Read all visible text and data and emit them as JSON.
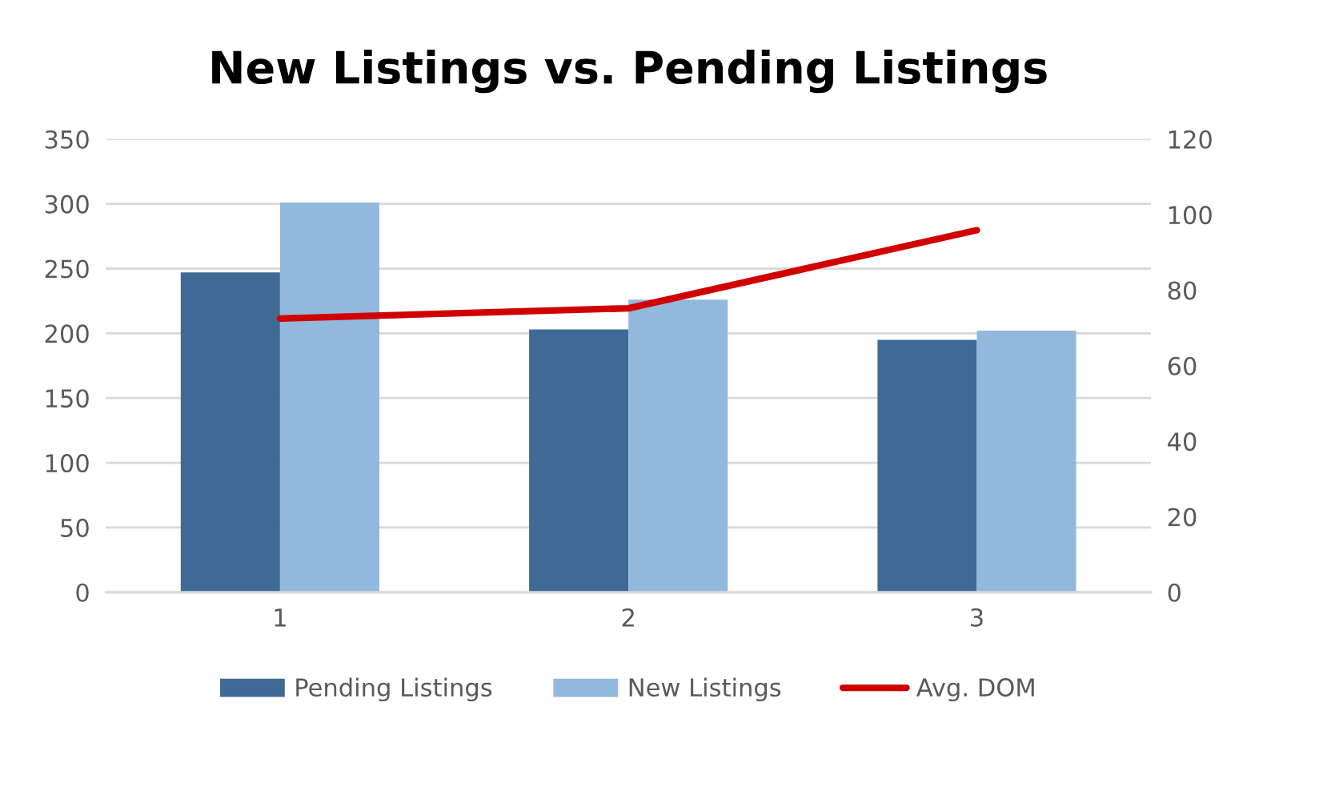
{
  "chart_data": {
    "type": "bar",
    "title": "New Listings vs. Pending Listings",
    "categories": [
      "1",
      "2",
      "3"
    ],
    "series": [
      {
        "name": "Pending Listings",
        "color": "#3e6a95",
        "values": [
          247,
          203,
          195
        ]
      },
      {
        "name": "New Listings",
        "color": "#92b8db",
        "values": [
          301,
          226,
          202
        ]
      },
      {
        "name": "Avg. DOM",
        "type": "line",
        "axis": "y2",
        "color": "#d00000",
        "values": [
          72.5,
          75.2,
          95.9
        ]
      }
    ],
    "ylim": [
      0,
      350
    ],
    "yticks": [
      0,
      50,
      100,
      150,
      200,
      250,
      300,
      350
    ],
    "y2lim": [
      0,
      120
    ],
    "y2ticks": [
      0,
      20,
      40,
      60,
      80,
      100,
      120
    ],
    "grid": "y",
    "legend": "bottom",
    "marker": "none",
    "line_style": "solid"
  }
}
